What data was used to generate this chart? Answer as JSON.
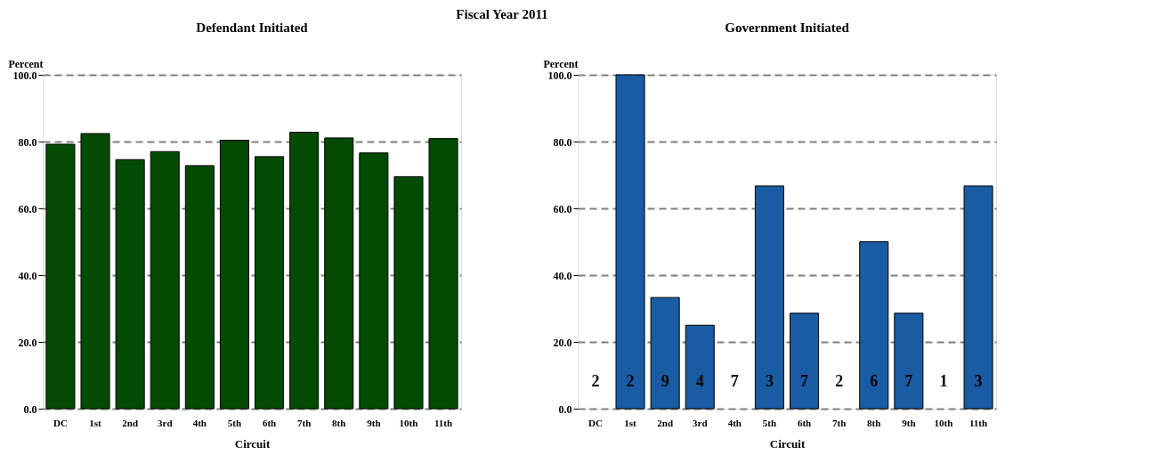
{
  "chart_data": [
    {
      "type": "bar",
      "title": "Defendant Initiated",
      "xlabel": "Circuit",
      "ylabel": "Percent",
      "annotations": [
        "Fiscal Year 2011"
      ],
      "categories": [
        "DC",
        "1st",
        "2nd",
        "3rd",
        "4th",
        "5th",
        "6th",
        "7th",
        "8th",
        "9th",
        "10th",
        "11th"
      ],
      "values": [
        79.2,
        82.4,
        74.6,
        77.0,
        72.8,
        80.4,
        75.5,
        82.8,
        81.1,
        76.6,
        69.5,
        80.9
      ],
      "color": "#034a03",
      "ylim": [
        0,
        100
      ],
      "yticks": [
        {
          "value": 0,
          "label": "0.0"
        },
        {
          "value": 20,
          "label": "20.0"
        },
        {
          "value": 40,
          "label": "40.0"
        },
        {
          "value": 60,
          "label": "60.0"
        },
        {
          "value": 80,
          "label": "80.0"
        },
        {
          "value": 100,
          "label": "100.0"
        }
      ],
      "grid": "y"
    },
    {
      "type": "bar",
      "title": "Government Initiated",
      "xlabel": "Circuit",
      "ylabel": "Percent",
      "categories": [
        "DC",
        "1st",
        "2nd",
        "3rd",
        "4th",
        "5th",
        "6th",
        "7th",
        "8th",
        "9th",
        "10th",
        "11th"
      ],
      "values": [
        0,
        100,
        33.3,
        25.0,
        0,
        66.7,
        28.6,
        0,
        50.0,
        28.6,
        0,
        66.7
      ],
      "color": "#1a5ca4",
      "ylim": [
        0,
        100
      ],
      "yticks": [
        {
          "value": 0,
          "label": "0.0"
        },
        {
          "value": 20,
          "label": "20.0"
        },
        {
          "value": 40,
          "label": "40.0"
        },
        {
          "value": 60,
          "label": "60.0"
        },
        {
          "value": 80,
          "label": "80.0"
        },
        {
          "value": 100,
          "label": "100.0"
        }
      ],
      "grid": "y",
      "annotations": [
        "2",
        "2",
        "9",
        "4",
        "7",
        "3",
        "7",
        "2",
        "6",
        "7",
        "1",
        "3"
      ]
    }
  ]
}
